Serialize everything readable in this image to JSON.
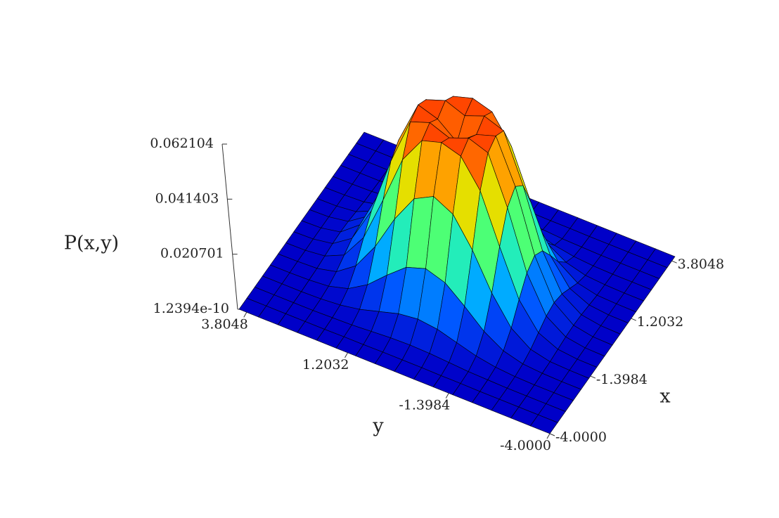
{
  "chart_data": {
    "type": "surface",
    "xlabel": "x",
    "ylabel": "y",
    "zlabel": "P(x,y)",
    "x": [
      -4,
      -3.5,
      -3,
      -2.5,
      -2,
      -1.5,
      -1,
      -0.5,
      0,
      0.5,
      1,
      1.5,
      2,
      2.5,
      3,
      3.5,
      4
    ],
    "y": [
      -4,
      -3.5,
      -3,
      -2.5,
      -2,
      -1.5,
      -1,
      -0.5,
      0,
      0.5,
      1,
      1.5,
      2,
      2.5,
      3,
      3.5,
      4
    ],
    "z": [
      [
        0,
        0,
        0,
        0,
        0,
        0,
        0,
        0,
        0,
        0,
        0,
        0,
        0,
        0,
        0,
        0,
        0
      ],
      [
        0,
        0,
        0,
        0,
        0,
        0.0001,
        0.0001,
        0.0002,
        0.0002,
        0.0002,
        0.0001,
        0.0001,
        0,
        0,
        0,
        0,
        0
      ],
      [
        0,
        0,
        0,
        0,
        0.0002,
        0.0004,
        0.0009,
        0.0014,
        0.0016,
        0.0014,
        0.0009,
        0.0004,
        0.0002,
        0,
        0,
        0,
        0
      ],
      [
        0,
        0,
        0,
        0.0002,
        0.0008,
        0.0021,
        0.0042,
        0.0063,
        0.0072,
        0.0063,
        0.0042,
        0.0021,
        0.0008,
        0.0002,
        0,
        0,
        0
      ],
      [
        0,
        0,
        0.0002,
        0.0008,
        0.0028,
        0.0072,
        0.0137,
        0.0196,
        0.022,
        0.0196,
        0.0137,
        0.0072,
        0.0028,
        0.0008,
        0.0002,
        0,
        0
      ],
      [
        0,
        0.0001,
        0.0004,
        0.0021,
        0.0072,
        0.0174,
        0.0307,
        0.0412,
        0.045,
        0.0412,
        0.0307,
        0.0174,
        0.0072,
        0.0021,
        0.0004,
        0.0001,
        0
      ],
      [
        0,
        0.0001,
        0.0009,
        0.0042,
        0.0137,
        0.0307,
        0.0488,
        0.0589,
        0.0611,
        0.0589,
        0.0488,
        0.0307,
        0.0137,
        0.0042,
        0.0009,
        0.0001,
        0
      ],
      [
        0,
        0.0002,
        0.0014,
        0.0063,
        0.0196,
        0.0412,
        0.0589,
        0.0615,
        0.0587,
        0.0615,
        0.0589,
        0.0412,
        0.0196,
        0.0063,
        0.0014,
        0.0002,
        0
      ],
      [
        0,
        0.0002,
        0.0016,
        0.0072,
        0.022,
        0.045,
        0.0611,
        0.0587,
        0.0529,
        0.0587,
        0.0611,
        0.045,
        0.022,
        0.0072,
        0.0016,
        0.0002,
        0
      ],
      [
        0,
        0.0002,
        0.0014,
        0.0063,
        0.0196,
        0.0412,
        0.0589,
        0.0615,
        0.0587,
        0.0615,
        0.0589,
        0.0412,
        0.0196,
        0.0063,
        0.0014,
        0.0002,
        0
      ],
      [
        0,
        0.0001,
        0.0009,
        0.0042,
        0.0137,
        0.0307,
        0.0488,
        0.0589,
        0.0611,
        0.0589,
        0.0488,
        0.0307,
        0.0137,
        0.0042,
        0.0009,
        0.0001,
        0
      ],
      [
        0,
        0.0001,
        0.0004,
        0.0021,
        0.0072,
        0.0174,
        0.0307,
        0.0412,
        0.045,
        0.0412,
        0.0307,
        0.0174,
        0.0072,
        0.0021,
        0.0004,
        0.0001,
        0
      ],
      [
        0,
        0,
        0.0002,
        0.0008,
        0.0028,
        0.0072,
        0.0137,
        0.0196,
        0.022,
        0.0196,
        0.0137,
        0.0072,
        0.0028,
        0.0008,
        0.0002,
        0,
        0
      ],
      [
        0,
        0,
        0,
        0.0002,
        0.0008,
        0.0021,
        0.0042,
        0.0063,
        0.0072,
        0.0063,
        0.0042,
        0.0021,
        0.0008,
        0.0002,
        0,
        0,
        0
      ],
      [
        0,
        0,
        0,
        0,
        0.0002,
        0.0004,
        0.0009,
        0.0014,
        0.0016,
        0.0014,
        0.0009,
        0.0004,
        0.0002,
        0,
        0,
        0,
        0
      ],
      [
        0,
        0,
        0,
        0,
        0,
        0.0001,
        0.0001,
        0.0002,
        0.0002,
        0.0002,
        0.0001,
        0.0001,
        0,
        0,
        0,
        0,
        0
      ],
      [
        0,
        0,
        0,
        0,
        0,
        0,
        0,
        0,
        0,
        0,
        0,
        0,
        0,
        0,
        0,
        0,
        0
      ]
    ],
    "xlim": [
      -4,
      4
    ],
    "ylim": [
      -4,
      4
    ],
    "zlim": [
      1.2394e-10,
      0.062104
    ],
    "xticks": [
      {
        "value": -4,
        "label": "-4.0000"
      },
      -1.3984,
      1.2032,
      3.8048
    ],
    "yticks": [
      {
        "value": -4,
        "label": "-4.0000"
      },
      -1.3984,
      1.2032,
      3.8048
    ],
    "zticks": [
      1.2394e-10,
      0.020701,
      0.041403,
      0.062104
    ],
    "colormap": [
      "#0000c8",
      "#0050ff",
      "#00d8ff",
      "#40ff80",
      "#d8ff00",
      "#ffa000",
      "#ff3000"
    ],
    "mesh_color": "#000000"
  }
}
